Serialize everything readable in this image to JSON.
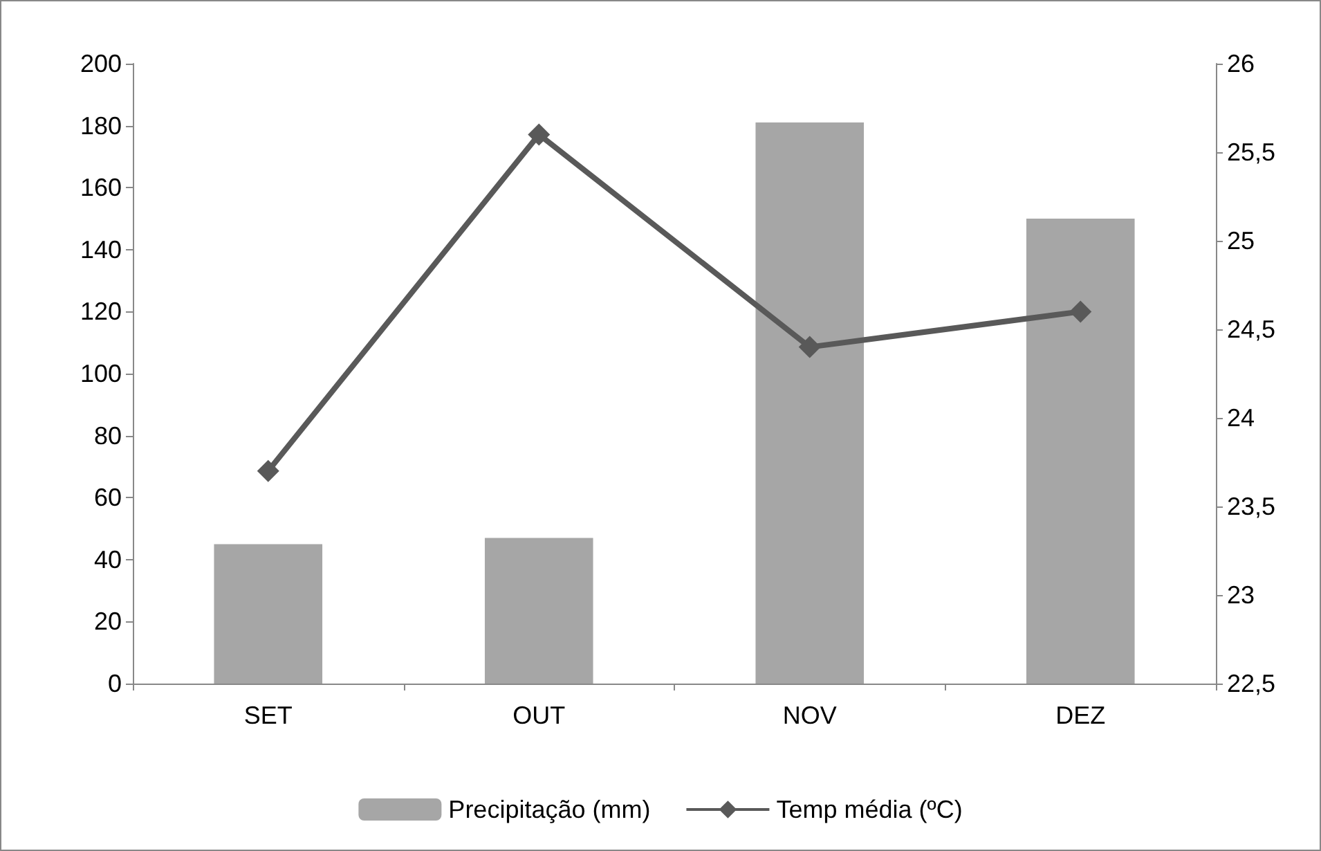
{
  "chart_data": {
    "type": "bar",
    "categories": [
      "SET",
      "OUT",
      "NOV",
      "DEZ"
    ],
    "series": [
      {
        "name": "Precipitação (mm)",
        "color": "#a6a6a6",
        "values": [
          45,
          47,
          181,
          150
        ]
      },
      {
        "name": "Temp média (ºC)",
        "type": "line",
        "axis": "y2",
        "color": "#595959",
        "marker": "diamond",
        "values": [
          23.7,
          25.6,
          24.4,
          24.6
        ]
      }
    ],
    "ylim": [
      0,
      200
    ],
    "yticks": [
      0,
      20,
      40,
      60,
      80,
      100,
      120,
      140,
      160,
      180,
      200
    ],
    "y2lim": [
      22.5,
      26
    ],
    "y2ticks": [
      {
        "value": 22.5,
        "label": "22,5"
      },
      23,
      {
        "value": 23.5,
        "label": "23,5"
      },
      24,
      {
        "value": 24.5,
        "label": "24,5"
      },
      25,
      {
        "value": 25.5,
        "label": "25,5"
      },
      26
    ],
    "legend": "bottom",
    "grid": false
  }
}
